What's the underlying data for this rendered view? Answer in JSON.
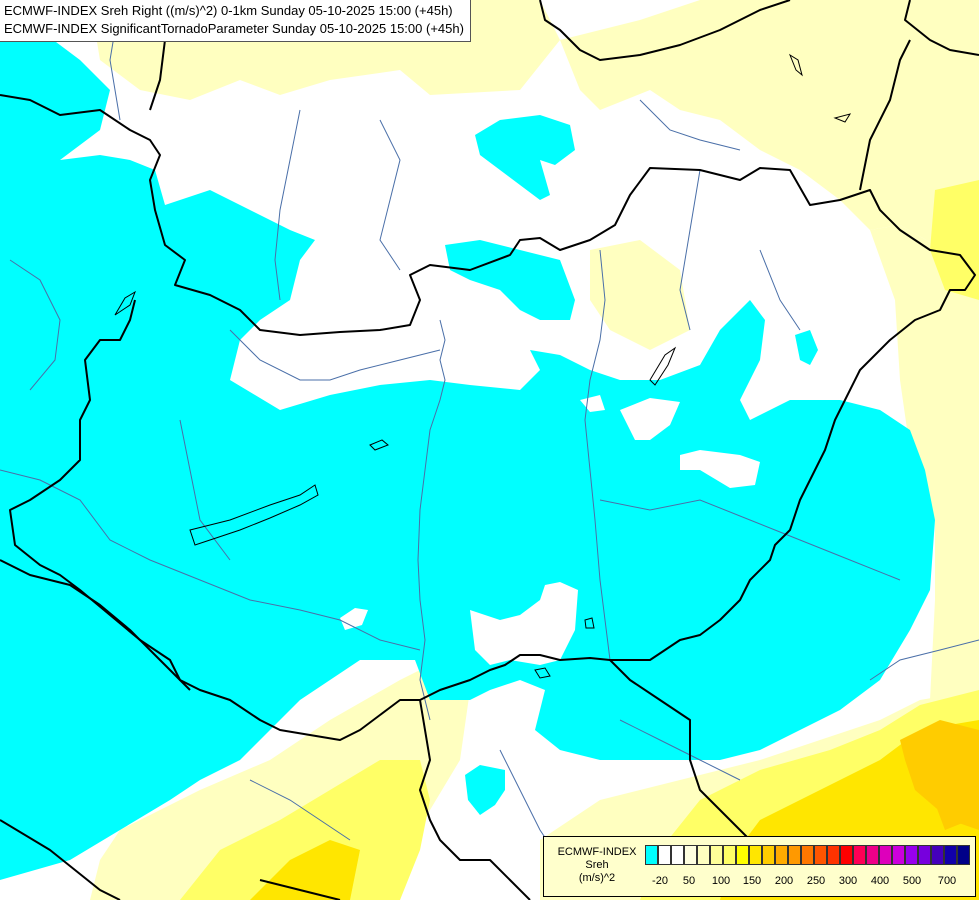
{
  "title": {
    "line1": "ECMWF-INDEX Sreh Right ((m/s)^2) 0-1km Sunday 05-10-2025 15:00 (+45h)",
    "line2": "ECMWF-INDEX SignificantTornadoParameter Sunday 05-10-2025 15:00 (+45h)"
  },
  "legend": {
    "line1": "ECMWF-INDEX",
    "line2": "Sreh",
    "line3": "(m/s)^2",
    "colors": [
      "#00ffff",
      "#ffffff",
      "#ffffff",
      "#ffffe0",
      "#ffffc0",
      "#ffff99",
      "#ffff66",
      "#ffff00",
      "#ffe600",
      "#ffcc00",
      "#ffaa00",
      "#ff9900",
      "#ff7700",
      "#ff5500",
      "#ff3300",
      "#ff0000",
      "#ff0055",
      "#ee0088",
      "#dd00bb",
      "#cc00dd",
      "#9900ee",
      "#7700dd",
      "#4400bb",
      "#1100aa",
      "#000088"
    ],
    "tick_labels": [
      "-20",
      "50",
      "100",
      "150",
      "200",
      "250",
      "300",
      "400",
      "500",
      "700"
    ]
  },
  "palette": {
    "cyan": "#00ffff",
    "pale_yellow": "#ffffc0",
    "yellow": "#ffff66",
    "gold": "#ffe600",
    "orange": "#ffcc00",
    "border": "#000000",
    "river": "#4a6fa8"
  }
}
